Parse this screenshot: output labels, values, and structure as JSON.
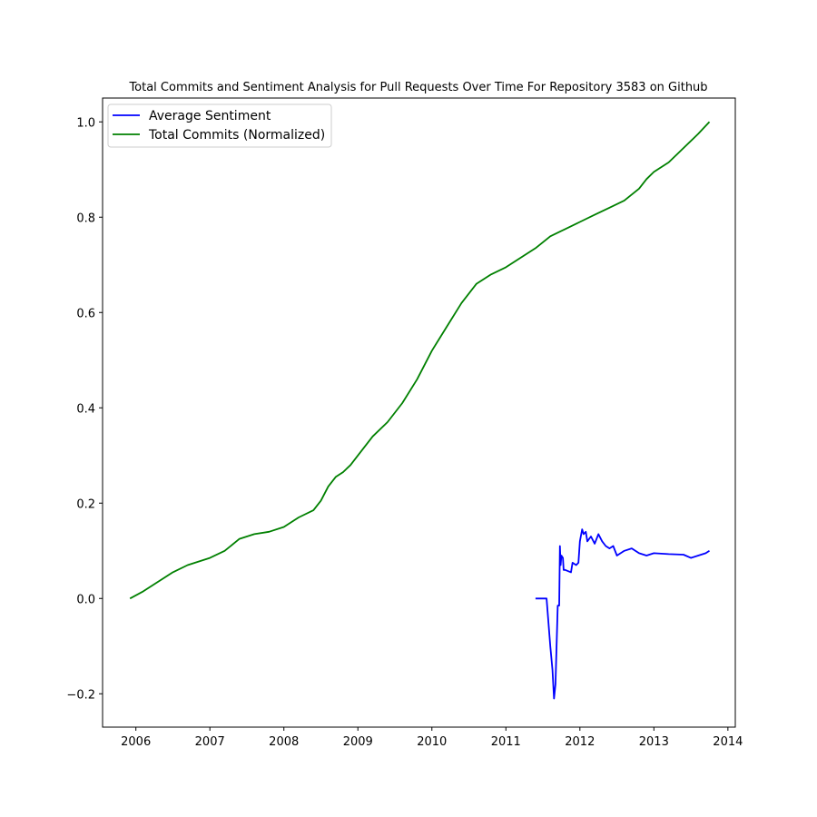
{
  "chart_data": {
    "type": "line",
    "title": "Total Commits and Sentiment Analysis for Pull Requests Over Time For Repository 3583 on Github",
    "xlabel": "",
    "ylabel": "",
    "xlim": [
      2005.55,
      2014.1
    ],
    "ylim": [
      -0.27,
      1.05
    ],
    "x_ticks": [
      2006,
      2007,
      2008,
      2009,
      2010,
      2011,
      2012,
      2013,
      2014
    ],
    "x_tick_labels": [
      "2006",
      "2007",
      "2008",
      "2009",
      "2010",
      "2011",
      "2012",
      "2013",
      "2014"
    ],
    "y_ticks": [
      -0.2,
      0.0,
      0.2,
      0.4,
      0.6,
      0.8,
      1.0
    ],
    "y_tick_labels": [
      "−0.2",
      "0.0",
      "0.2",
      "0.4",
      "0.6",
      "0.8",
      "1.0"
    ],
    "grid": false,
    "legend": {
      "position": "top-left"
    },
    "series": [
      {
        "name": "Average Sentiment",
        "color": "#0000ff",
        "x": [
          2011.4,
          2011.55,
          2011.6,
          2011.63,
          2011.65,
          2011.67,
          2011.7,
          2011.72,
          2011.73,
          2011.74,
          2011.75,
          2011.77,
          2011.78,
          2011.8,
          2011.88,
          2011.9,
          2011.95,
          2011.98,
          2012.0,
          2012.03,
          2012.05,
          2012.08,
          2012.1,
          2012.15,
          2012.2,
          2012.25,
          2012.3,
          2012.35,
          2012.4,
          2012.45,
          2012.5,
          2012.6,
          2012.7,
          2012.8,
          2012.9,
          2013.0,
          2013.2,
          2013.4,
          2013.5,
          2013.6,
          2013.7,
          2013.75
        ],
        "y": [
          0.0,
          0.0,
          -0.1,
          -0.15,
          -0.21,
          -0.18,
          -0.015,
          -0.015,
          0.11,
          0.07,
          0.09,
          0.085,
          0.06,
          0.06,
          0.055,
          0.075,
          0.07,
          0.075,
          0.12,
          0.145,
          0.135,
          0.14,
          0.12,
          0.13,
          0.115,
          0.135,
          0.12,
          0.11,
          0.105,
          0.11,
          0.09,
          0.1,
          0.105,
          0.095,
          0.09,
          0.095,
          0.093,
          0.092,
          0.085,
          0.09,
          0.095,
          0.1
        ]
      },
      {
        "name": "Total Commits (Normalized)",
        "color": "#008000",
        "x": [
          2005.92,
          2006.1,
          2006.3,
          2006.5,
          2006.7,
          2007.0,
          2007.2,
          2007.4,
          2007.6,
          2007.8,
          2008.0,
          2008.2,
          2008.4,
          2008.5,
          2008.6,
          2008.7,
          2008.8,
          2008.9,
          2009.0,
          2009.2,
          2009.4,
          2009.6,
          2009.8,
          2010.0,
          2010.2,
          2010.4,
          2010.6,
          2010.8,
          2011.0,
          2011.2,
          2011.4,
          2011.6,
          2011.8,
          2012.0,
          2012.2,
          2012.4,
          2012.6,
          2012.8,
          2012.9,
          2013.0,
          2013.2,
          2013.4,
          2013.6,
          2013.75
        ],
        "y": [
          0.0,
          0.015,
          0.035,
          0.055,
          0.07,
          0.085,
          0.1,
          0.125,
          0.135,
          0.14,
          0.15,
          0.17,
          0.185,
          0.205,
          0.235,
          0.255,
          0.265,
          0.28,
          0.3,
          0.34,
          0.37,
          0.41,
          0.46,
          0.52,
          0.57,
          0.62,
          0.66,
          0.68,
          0.695,
          0.715,
          0.735,
          0.76,
          0.775,
          0.79,
          0.805,
          0.82,
          0.835,
          0.86,
          0.88,
          0.895,
          0.915,
          0.945,
          0.975,
          1.0
        ]
      }
    ]
  }
}
